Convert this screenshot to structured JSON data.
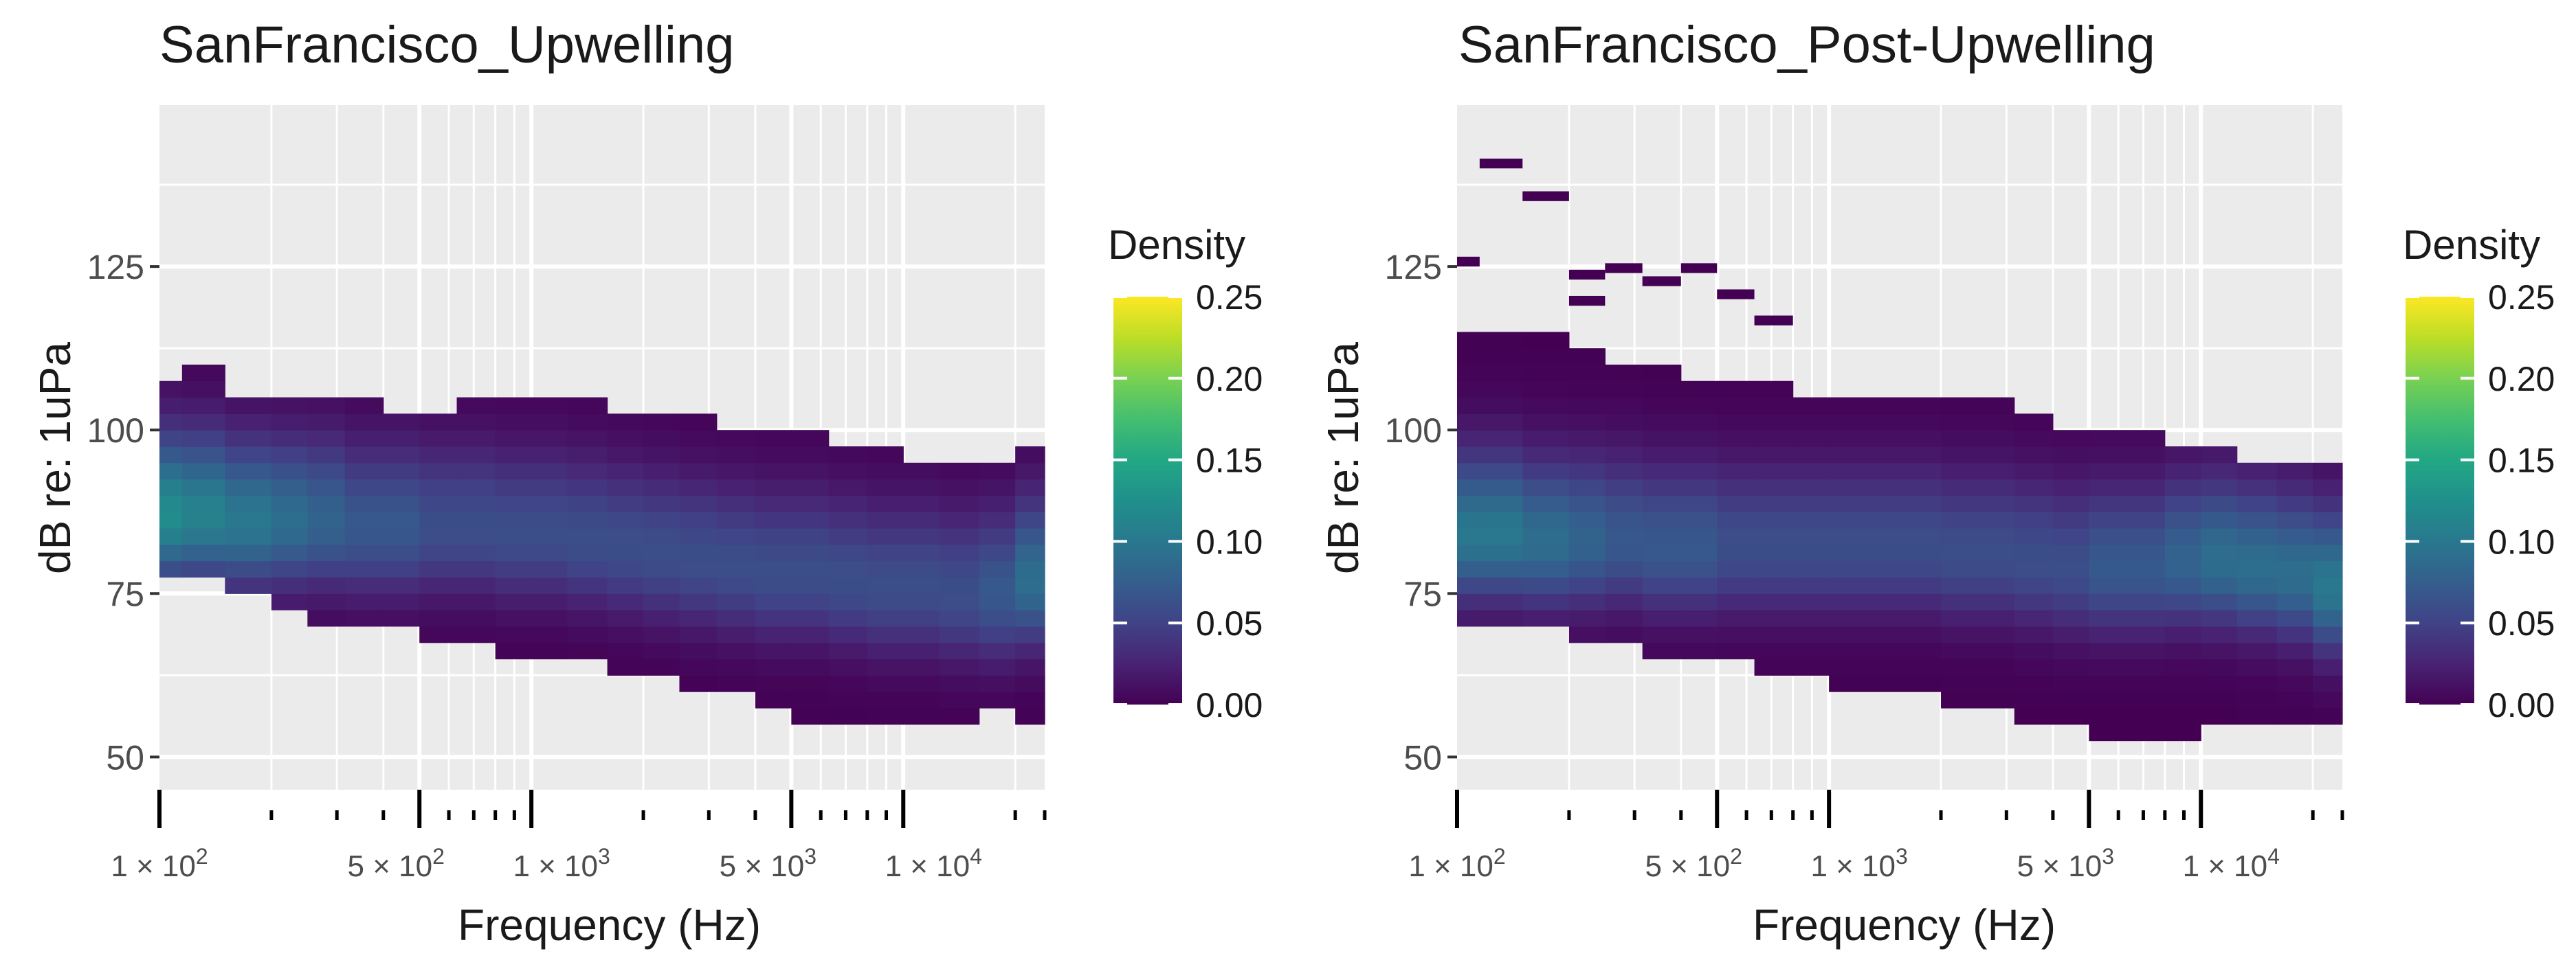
{
  "chart_data": [
    {
      "type": "heatmap",
      "title": "SanFrancisco_Upwelling",
      "xlabel": "Frequency (Hz)",
      "ylabel": "dB re: 1uPa",
      "x_scale": "log",
      "xlim": [
        100,
        24000
      ],
      "ylim": [
        45,
        150
      ],
      "x_tick_labels": [
        "1 × 10^2",
        "5 × 10^2",
        "1 × 10^3",
        "5 × 10^3",
        "1 × 10^4"
      ],
      "y_ticks": [
        50,
        75,
        100,
        125
      ],
      "legend": {
        "title": "Density",
        "ticks": [
          0.0,
          0.05,
          0.1,
          0.15,
          0.2,
          0.25
        ],
        "colormap": "viridis",
        "placement": "right"
      },
      "grid": true,
      "x": [
        100,
        115,
        150,
        200,
        250,
        315,
        400,
        500,
        630,
        800,
        1000,
        1250,
        1600,
        2000,
        2500,
        3150,
        4000,
        5000,
        6300,
        8000,
        10000,
        12500,
        16000,
        20000
      ],
      "y_low": [
        79,
        78,
        76,
        74,
        72,
        71,
        70,
        69,
        68,
        67,
        66,
        65,
        64,
        63,
        62,
        60,
        58,
        57,
        56,
        56,
        56,
        57,
        58,
        55
      ],
      "y_high": [
        106,
        108,
        105,
        104,
        105,
        103,
        102,
        102,
        103,
        104,
        104,
        103,
        102,
        102,
        101,
        100,
        99,
        98,
        97,
        96,
        95,
        94,
        93,
        97
      ],
      "y_peak": [
        87,
        87,
        86,
        86,
        86,
        85,
        85,
        85,
        85,
        84,
        84,
        83,
        82,
        81,
        80,
        79,
        78,
        78,
        77,
        76,
        76,
        75,
        75,
        77
      ],
      "peak_density": [
        0.12,
        0.11,
        0.1,
        0.09,
        0.08,
        0.07,
        0.07,
        0.06,
        0.06,
        0.06,
        0.06,
        0.06,
        0.06,
        0.06,
        0.06,
        0.06,
        0.06,
        0.06,
        0.06,
        0.06,
        0.06,
        0.06,
        0.07,
        0.09
      ]
    },
    {
      "type": "heatmap",
      "title": "SanFrancisco_Post-Upwelling",
      "xlabel": "Frequency (Hz)",
      "ylabel": "dB re: 1uPa",
      "x_scale": "log",
      "xlim": [
        100,
        24000
      ],
      "ylim": [
        45,
        150
      ],
      "x_tick_labels": [
        "1 × 10^2",
        "5 × 10^2",
        "1 × 10^3",
        "5 × 10^3",
        "1 × 10^4"
      ],
      "y_ticks": [
        50,
        75,
        100,
        125
      ],
      "legend": {
        "title": "Density",
        "ticks": [
          0.0,
          0.05,
          0.1,
          0.15,
          0.2,
          0.25
        ],
        "colormap": "viridis",
        "placement": "right"
      },
      "grid": true,
      "x": [
        100,
        115,
        150,
        200,
        250,
        315,
        400,
        500,
        630,
        800,
        1000,
        1250,
        1600,
        2000,
        2500,
        3150,
        4000,
        5000,
        6300,
        8000,
        10000,
        12500,
        16000,
        20000
      ],
      "y_low": [
        72,
        71,
        70,
        69,
        68,
        67,
        66,
        65,
        64,
        63,
        62,
        61,
        60,
        59,
        58,
        56,
        55,
        54,
        54,
        54,
        55,
        56,
        56,
        55
      ],
      "y_high": [
        115,
        114,
        113,
        112,
        110,
        108,
        107,
        106,
        106,
        105,
        105,
        104,
        104,
        103,
        103,
        101,
        100,
        99,
        98,
        97,
        96,
        95,
        94,
        95
      ],
      "y_peak": [
        84,
        84,
        83,
        83,
        83,
        82,
        82,
        82,
        82,
        82,
        82,
        82,
        82,
        81,
        81,
        80,
        79,
        79,
        79,
        80,
        80,
        79,
        78,
        76
      ],
      "peak_density": [
        0.1,
        0.1,
        0.09,
        0.08,
        0.07,
        0.07,
        0.07,
        0.06,
        0.06,
        0.06,
        0.06,
        0.06,
        0.06,
        0.06,
        0.06,
        0.06,
        0.06,
        0.07,
        0.07,
        0.08,
        0.09,
        0.09,
        0.09,
        0.1
      ],
      "outliers": [
        {
          "x": 100,
          "y": 125
        },
        {
          "x": 115,
          "y": 140
        },
        {
          "x": 150,
          "y": 135
        },
        {
          "x": 200,
          "y": 123
        },
        {
          "x": 200,
          "y": 119
        },
        {
          "x": 250,
          "y": 124
        },
        {
          "x": 315,
          "y": 122
        },
        {
          "x": 400,
          "y": 124
        },
        {
          "x": 500,
          "y": 120
        },
        {
          "x": 630,
          "y": 116
        }
      ]
    }
  ]
}
